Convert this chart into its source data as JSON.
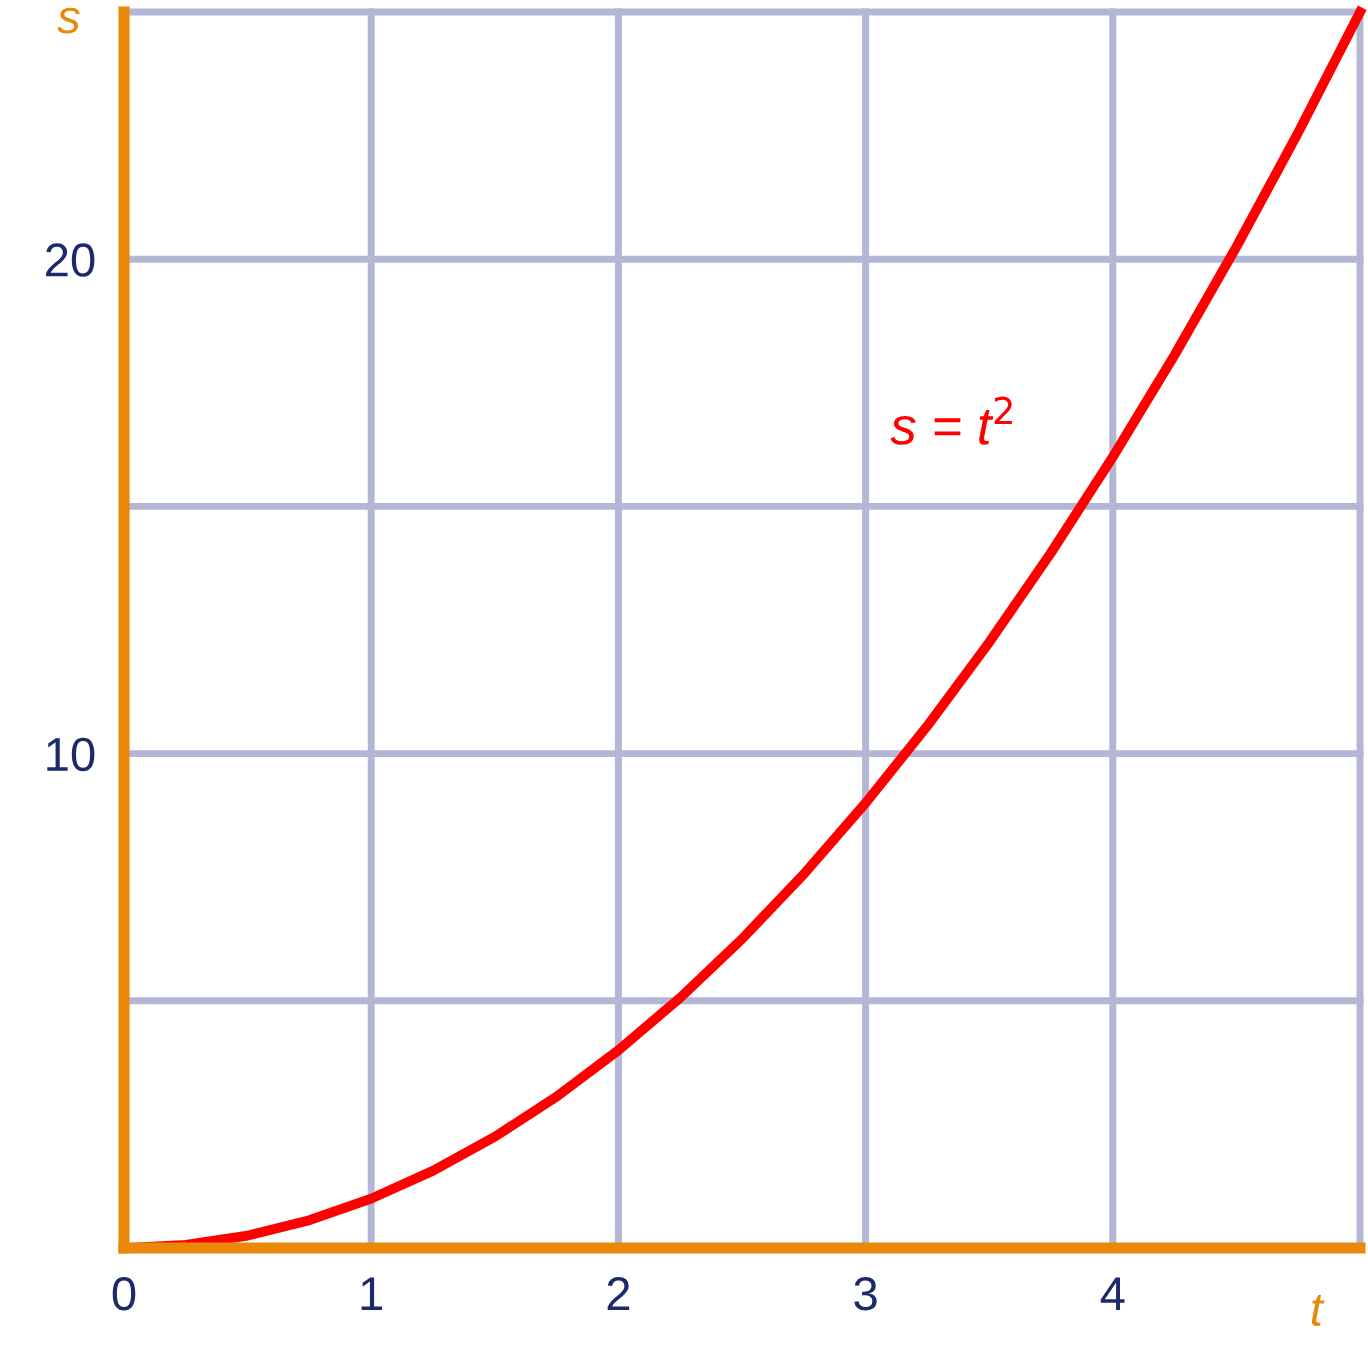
{
  "chart_data": {
    "type": "line",
    "x": [
      0,
      0.25,
      0.5,
      0.75,
      1,
      1.25,
      1.5,
      1.75,
      2,
      2.25,
      2.5,
      2.75,
      3,
      3.25,
      3.5,
      3.75,
      4,
      4.25,
      4.5,
      4.75,
      5
    ],
    "series": [
      {
        "color": "#ff0000",
        "values": [
          0,
          0.0625,
          0.25,
          0.5625,
          1,
          1.5625,
          2.25,
          3.0625,
          4,
          5.0625,
          6.25,
          7.5625,
          9,
          10.5625,
          12.25,
          14.0625,
          16,
          18.0625,
          20.25,
          22.5625,
          25
        ]
      }
    ],
    "xlim": [
      0,
      5
    ],
    "ylim": [
      0,
      25
    ],
    "xticks": [
      0,
      1,
      2,
      3,
      4,
      {
        "value": 5,
        "label": null
      }
    ],
    "yticks": [
      {
        "value": 0,
        "label": null
      },
      {
        "value": 5,
        "label": null
      },
      10,
      {
        "value": 15,
        "label": null
      },
      20,
      {
        "value": 25,
        "label": null
      }
    ],
    "xlabel": "t",
    "ylabel": "s",
    "annotations": [
      "s = t$^{2}$"
    ],
    "grid": true,
    "legend": false,
    "marker": "none",
    "line_style": "solid"
  }
}
